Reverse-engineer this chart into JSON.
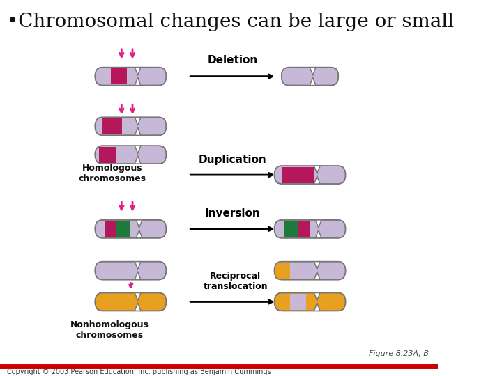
{
  "title": "•Chromosomal changes can be large or small",
  "bg_color": "#ffffff",
  "chrom_lavender": "#c8b8d8",
  "chrom_outline": "#777777",
  "magenta": "#b5185a",
  "green": "#1e7a3a",
  "orange": "#e8a020",
  "arrow_color": "#e0208a",
  "label_fontsize": 11,
  "copyright": "Copyright © 2003 Pearson Education, Inc. publishing as Benjamin Cummings",
  "figure_ref": "Figure 8.23A, B"
}
